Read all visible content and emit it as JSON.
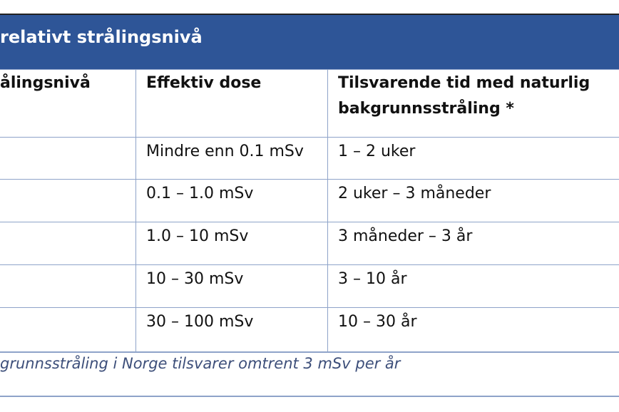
{
  "table": {
    "title": "relativt strålingsnivå",
    "headers": [
      "ålingsnivå",
      "Effektiv dose",
      "Tilsvarende tid med naturlig",
      "bakgrunnsstråling *"
    ],
    "rows": [
      {
        "dose": "Mindre enn 0.1 mSv",
        "time": "1 – 2 uker"
      },
      {
        "dose": "0.1 – 1.0 mSv",
        "time": "2 uker – 3 måneder"
      },
      {
        "dose": "1.0 – 10 mSv",
        "time": "3 måneder – 3 år"
      },
      {
        "dose": "10 – 30 mSv",
        "time": "3 – 10 år"
      },
      {
        "dose": "30 – 100 mSv",
        "time": "10 – 30 år"
      }
    ],
    "footnote": "grunnsstråling i Norge tilsvarer omtrent 3 mSv per år"
  },
  "colors": {
    "header_bg": "#2e5597",
    "border": "#8ea3c9",
    "footnote": "#3d4f7a"
  }
}
